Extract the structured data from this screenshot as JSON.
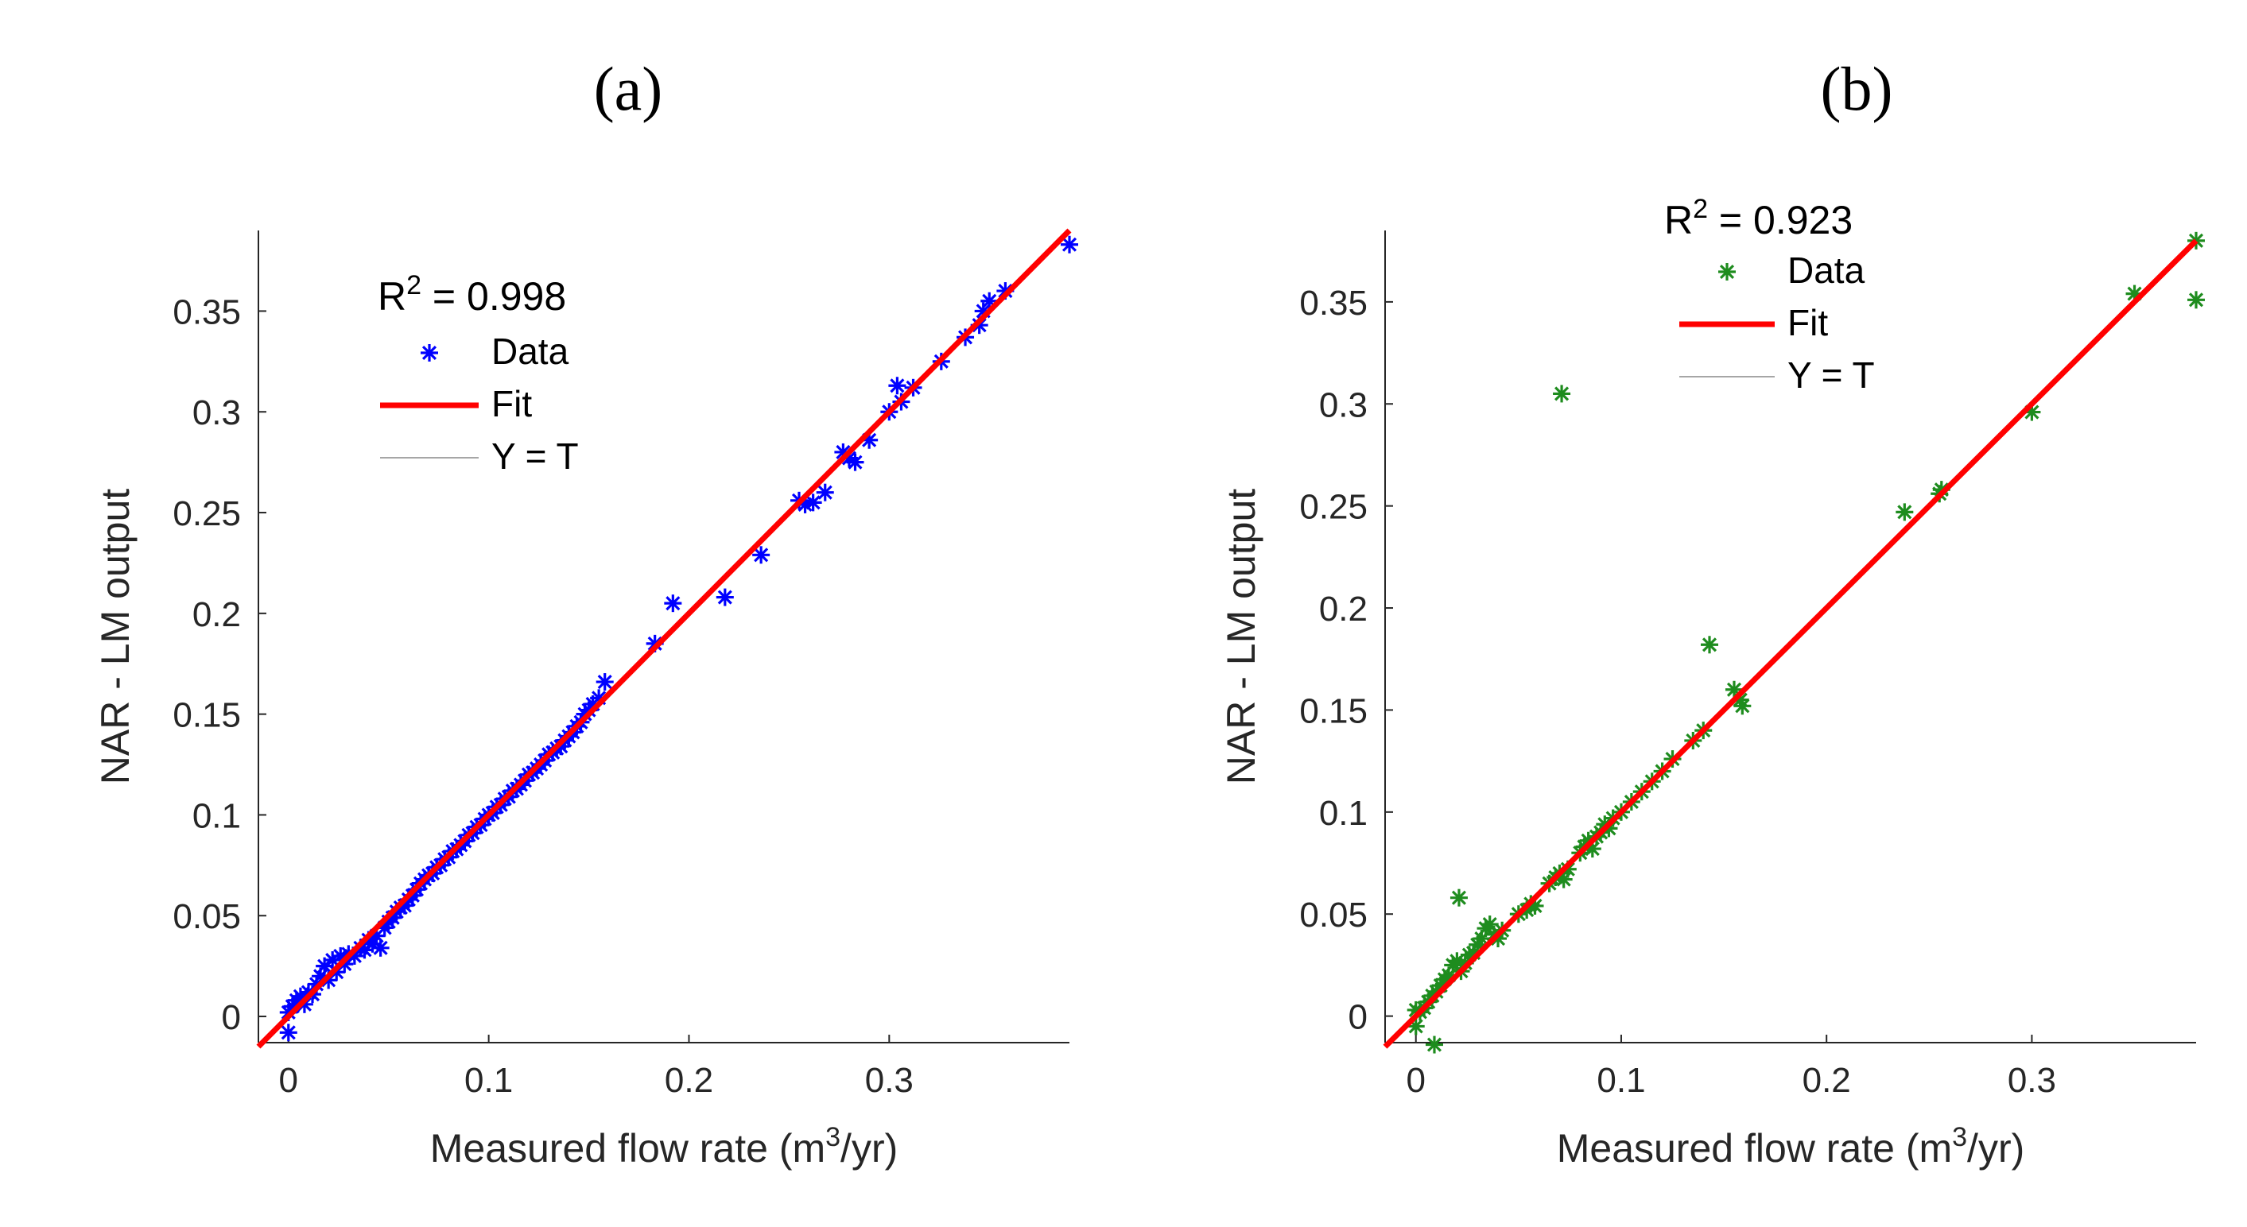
{
  "chart_data": [
    {
      "type": "scatter",
      "panel_label": "(a)",
      "xlabel": "Measured flow rate (m",
      "xlabel_sup": "3",
      "xlabel_end": "/yr)",
      "ylabel": "NAR - LM output",
      "xlim": [
        -0.015,
        0.39
      ],
      "ylim": [
        -0.013,
        0.39
      ],
      "x_ticks": [
        0,
        0.1,
        0.2,
        0.3
      ],
      "x_tick_labels": [
        "0",
        "0.1",
        "0.2",
        "0.3"
      ],
      "y_ticks": [
        0,
        0.05,
        0.1,
        0.15,
        0.2,
        0.25,
        0.3,
        0.35
      ],
      "y_tick_labels": [
        "0",
        "0.05",
        "0.1",
        "0.15",
        "0.2",
        "0.25",
        "0.3",
        "0.35"
      ],
      "r2_prefix": "R",
      "r2_sup": "2",
      "r2_value": " = 0.998",
      "legend": [
        "Data",
        "Fit",
        "Y = T"
      ],
      "legend_placement": "top-left",
      "data_color": "#0000ff",
      "fit_color": "#ff0000",
      "identity_color": "#a6a6a6",
      "fit": {
        "slope": 1.0,
        "intercept": 0.0
      },
      "series": [
        {
          "name": "Data",
          "marker": "asterisk",
          "points": [
            [
              0.0,
              -0.008
            ],
            [
              0.0,
              0.002
            ],
            [
              0.002,
              0.005
            ],
            [
              0.004,
              0.008
            ],
            [
              0.006,
              0.01
            ],
            [
              0.008,
              0.006
            ],
            [
              0.01,
              0.012
            ],
            [
              0.012,
              0.011
            ],
            [
              0.014,
              0.016
            ],
            [
              0.016,
              0.02
            ],
            [
              0.018,
              0.025
            ],
            [
              0.02,
              0.018
            ],
            [
              0.022,
              0.028
            ],
            [
              0.024,
              0.022
            ],
            [
              0.026,
              0.03
            ],
            [
              0.028,
              0.026
            ],
            [
              0.03,
              0.031
            ],
            [
              0.033,
              0.03
            ],
            [
              0.036,
              0.034
            ],
            [
              0.038,
              0.033
            ],
            [
              0.04,
              0.038
            ],
            [
              0.042,
              0.036
            ],
            [
              0.044,
              0.04
            ],
            [
              0.046,
              0.034
            ],
            [
              0.048,
              0.044
            ],
            [
              0.05,
              0.047
            ],
            [
              0.052,
              0.049
            ],
            [
              0.054,
              0.052
            ],
            [
              0.056,
              0.054
            ],
            [
              0.058,
              0.055
            ],
            [
              0.06,
              0.058
            ],
            [
              0.062,
              0.06
            ],
            [
              0.064,
              0.063
            ],
            [
              0.066,
              0.066
            ],
            [
              0.068,
              0.068
            ],
            [
              0.07,
              0.07
            ],
            [
              0.072,
              0.071
            ],
            [
              0.074,
              0.074
            ],
            [
              0.076,
              0.075
            ],
            [
              0.078,
              0.078
            ],
            [
              0.08,
              0.079
            ],
            [
              0.082,
              0.082
            ],
            [
              0.084,
              0.083
            ],
            [
              0.086,
              0.085
            ],
            [
              0.088,
              0.087
            ],
            [
              0.09,
              0.09
            ],
            [
              0.092,
              0.091
            ],
            [
              0.094,
              0.094
            ],
            [
              0.096,
              0.095
            ],
            [
              0.098,
              0.098
            ],
            [
              0.1,
              0.1
            ],
            [
              0.102,
              0.101
            ],
            [
              0.104,
              0.104
            ],
            [
              0.106,
              0.105
            ],
            [
              0.108,
              0.108
            ],
            [
              0.11,
              0.109
            ],
            [
              0.112,
              0.112
            ],
            [
              0.114,
              0.113
            ],
            [
              0.116,
              0.115
            ],
            [
              0.118,
              0.117
            ],
            [
              0.12,
              0.12
            ],
            [
              0.122,
              0.121
            ],
            [
              0.124,
              0.123
            ],
            [
              0.126,
              0.125
            ],
            [
              0.128,
              0.127
            ],
            [
              0.13,
              0.13
            ],
            [
              0.132,
              0.131
            ],
            [
              0.134,
              0.133
            ],
            [
              0.136,
              0.134
            ],
            [
              0.138,
              0.137
            ],
            [
              0.14,
              0.139
            ],
            [
              0.142,
              0.141
            ],
            [
              0.144,
              0.144
            ],
            [
              0.146,
              0.146
            ],
            [
              0.148,
              0.15
            ],
            [
              0.15,
              0.152
            ],
            [
              0.152,
              0.155
            ],
            [
              0.155,
              0.158
            ],
            [
              0.158,
              0.166
            ],
            [
              0.183,
              0.185
            ],
            [
              0.192,
              0.205
            ],
            [
              0.218,
              0.208
            ],
            [
              0.236,
              0.229
            ],
            [
              0.255,
              0.256
            ],
            [
              0.258,
              0.254
            ],
            [
              0.262,
              0.255
            ],
            [
              0.268,
              0.26
            ],
            [
              0.277,
              0.28
            ],
            [
              0.28,
              0.277
            ],
            [
              0.283,
              0.275
            ],
            [
              0.29,
              0.286
            ],
            [
              0.3,
              0.3
            ],
            [
              0.304,
              0.313
            ],
            [
              0.306,
              0.305
            ],
            [
              0.312,
              0.312
            ],
            [
              0.326,
              0.325
            ],
            [
              0.338,
              0.337
            ],
            [
              0.345,
              0.343
            ],
            [
              0.347,
              0.35
            ],
            [
              0.35,
              0.355
            ],
            [
              0.358,
              0.36
            ],
            [
              0.39,
              0.383
            ]
          ]
        },
        {
          "name": "Fit",
          "type": "line"
        },
        {
          "name": "Y = T",
          "type": "line"
        }
      ]
    },
    {
      "type": "scatter",
      "panel_label": "(b)",
      "xlabel": "Measured flow rate (m",
      "xlabel_sup": "3",
      "xlabel_end": "/yr)",
      "ylabel": "NAR - LM output",
      "xlim": [
        -0.015,
        0.38
      ],
      "ylim": [
        -0.013,
        0.385
      ],
      "x_ticks": [
        0,
        0.1,
        0.2,
        0.3
      ],
      "x_tick_labels": [
        "0",
        "0.1",
        "0.2",
        "0.3"
      ],
      "y_ticks": [
        0,
        0.05,
        0.1,
        0.15,
        0.2,
        0.25,
        0.3,
        0.35
      ],
      "y_tick_labels": [
        "0",
        "0.05",
        "0.1",
        "0.15",
        "0.2",
        "0.25",
        "0.3",
        "0.35"
      ],
      "r2_prefix": "R",
      "r2_sup": "2",
      "r2_value": " = 0.923",
      "legend": [
        "Data",
        "Fit",
        "Y = T"
      ],
      "legend_placement": "top-left",
      "data_color": "#1e8c1e",
      "fit_color": "#ff0000",
      "identity_color": "#a6a6a6",
      "fit": {
        "slope": 1.0,
        "intercept": 0.0
      },
      "series": [
        {
          "name": "Data",
          "marker": "asterisk",
          "points": [
            [
              0.0,
              0.003
            ],
            [
              0.0,
              -0.005
            ],
            [
              0.002,
              0.002
            ],
            [
              0.004,
              0.004
            ],
            [
              0.006,
              0.007
            ],
            [
              0.008,
              0.01
            ],
            [
              0.009,
              -0.014
            ],
            [
              0.01,
              0.012
            ],
            [
              0.012,
              0.015
            ],
            [
              0.014,
              0.018
            ],
            [
              0.016,
              0.02
            ],
            [
              0.018,
              0.025
            ],
            [
              0.02,
              0.027
            ],
            [
              0.021,
              0.058
            ],
            [
              0.022,
              0.022
            ],
            [
              0.024,
              0.026
            ],
            [
              0.026,
              0.03
            ],
            [
              0.028,
              0.031
            ],
            [
              0.03,
              0.035
            ],
            [
              0.032,
              0.038
            ],
            [
              0.034,
              0.043
            ],
            [
              0.036,
              0.045
            ],
            [
              0.038,
              0.04
            ],
            [
              0.04,
              0.038
            ],
            [
              0.042,
              0.042
            ],
            [
              0.05,
              0.05
            ],
            [
              0.054,
              0.052
            ],
            [
              0.056,
              0.055
            ],
            [
              0.058,
              0.054
            ],
            [
              0.065,
              0.065
            ],
            [
              0.068,
              0.068
            ],
            [
              0.07,
              0.07
            ],
            [
              0.071,
              0.305
            ],
            [
              0.072,
              0.067
            ],
            [
              0.074,
              0.072
            ],
            [
              0.08,
              0.08
            ],
            [
              0.082,
              0.083
            ],
            [
              0.084,
              0.086
            ],
            [
              0.086,
              0.082
            ],
            [
              0.088,
              0.088
            ],
            [
              0.09,
              0.09
            ],
            [
              0.092,
              0.094
            ],
            [
              0.094,
              0.092
            ],
            [
              0.096,
              0.097
            ],
            [
              0.1,
              0.1
            ],
            [
              0.105,
              0.105
            ],
            [
              0.11,
              0.11
            ],
            [
              0.115,
              0.115
            ],
            [
              0.12,
              0.12
            ],
            [
              0.125,
              0.126
            ],
            [
              0.135,
              0.135
            ],
            [
              0.14,
              0.14
            ],
            [
              0.143,
              0.182
            ],
            [
              0.155,
              0.16
            ],
            [
              0.158,
              0.155
            ],
            [
              0.159,
              0.152
            ],
            [
              0.238,
              0.247
            ],
            [
              0.255,
              0.256
            ],
            [
              0.256,
              0.258
            ],
            [
              0.3,
              0.296
            ],
            [
              0.35,
              0.354
            ],
            [
              0.38,
              0.38
            ],
            [
              0.38,
              0.351
            ]
          ]
        },
        {
          "name": "Fit",
          "type": "line"
        },
        {
          "name": "Y = T",
          "type": "line"
        }
      ]
    }
  ]
}
